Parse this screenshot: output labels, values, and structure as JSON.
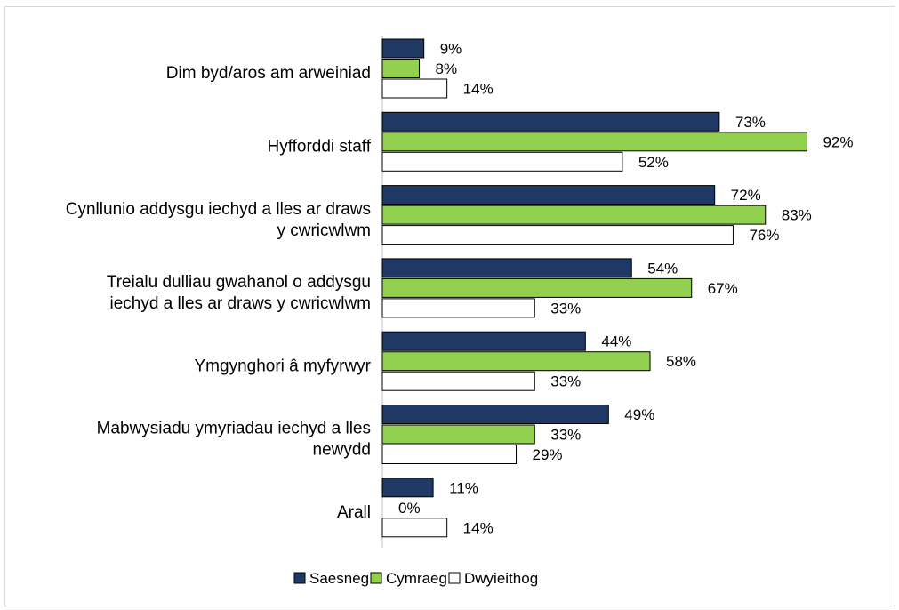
{
  "chart_data": {
    "type": "bar",
    "orientation": "horizontal",
    "categories": [
      [
        "Dim byd/aros am arweiniad"
      ],
      [
        "Hyfforddi staff"
      ],
      [
        "Cynllunio addysgu iechyd a lles ar draws",
        "y cwricwlwm"
      ],
      [
        "Treialu dulliau gwahanol o addysgu",
        "iechyd a lles ar draws y cwricwlwm"
      ],
      [
        "Ymgynghori â myfyrwyr"
      ],
      [
        "Mabwysiadu ymyriadau iechyd a lles",
        "newydd"
      ],
      [
        "Arall"
      ]
    ],
    "series": [
      {
        "name": "Saesneg",
        "color": "#1f3864",
        "values": [
          9,
          73,
          72,
          54,
          44,
          49,
          11
        ]
      },
      {
        "name": "Cymraeg",
        "color": "#92d050",
        "values": [
          8,
          92,
          83,
          67,
          58,
          33,
          0
        ]
      },
      {
        "name": "Dwyieithog",
        "color": "#ffffff",
        "values": [
          14,
          52,
          76,
          33,
          33,
          29,
          14
        ]
      }
    ],
    "value_suffix": "%",
    "xlim": [
      0,
      100
    ],
    "grid": false,
    "legend_position": "bottom"
  }
}
